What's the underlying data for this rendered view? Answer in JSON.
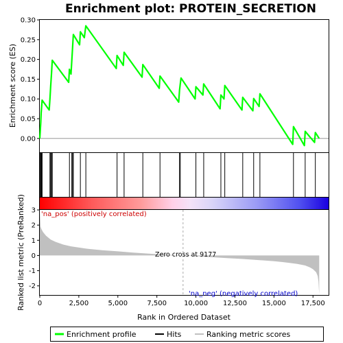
{
  "chart_data": {
    "type": "line",
    "title": "Enrichment plot: PROTEIN_SECRETION",
    "colors": {
      "enrichment_line": "#00ff00",
      "hits": "#000000",
      "metric_fill": "#c0c0c0",
      "pos_label": "#cc0000",
      "neg_label": "#0000cc",
      "zero_cross_line": "#aaaaaa"
    },
    "top_panel": {
      "ylabel": "Enrichment score (ES)",
      "ylim": [
        -0.035,
        0.3
      ],
      "yticks": [
        0.0,
        0.05,
        0.1,
        0.15,
        0.2,
        0.25,
        0.3
      ],
      "ytick_labels": [
        "0.00",
        "0.05",
        "0.10",
        "0.15",
        "0.20",
        "0.25",
        "0.30"
      ],
      "series": [
        {
          "name": "Enrichment profile",
          "x": [
            0,
            30,
            60,
            90,
            120,
            150,
            600,
            650,
            700,
            750,
            800,
            1850,
            1900,
            2000,
            2050,
            2100,
            2150,
            2550,
            2600,
            2850,
            2950,
            4900,
            4950,
            5350,
            5400,
            6550,
            6600,
            7650,
            7700,
            8900,
            8950,
            9000,
            9050,
            9950,
            10000,
            10450,
            10500,
            11550,
            11600,
            11800,
            11850,
            12950,
            13000,
            13650,
            13700,
            14050,
            14100,
            16200,
            16250,
            16950,
            17000,
            17600,
            17650,
            17900
          ],
          "y": [
            0.0,
            0.02,
            0.04,
            0.065,
            0.08,
            0.097,
            0.072,
            0.1,
            0.133,
            0.165,
            0.198,
            0.142,
            0.175,
            0.163,
            0.198,
            0.23,
            0.263,
            0.237,
            0.27,
            0.255,
            0.285,
            0.177,
            0.21,
            0.185,
            0.218,
            0.155,
            0.187,
            0.127,
            0.158,
            0.092,
            0.122,
            0.138,
            0.153,
            0.1,
            0.131,
            0.11,
            0.138,
            0.075,
            0.11,
            0.1,
            0.134,
            0.072,
            0.104,
            0.07,
            0.101,
            0.081,
            0.113,
            -0.015,
            0.03,
            -0.018,
            0.018,
            -0.01,
            0.015,
            0.0
          ]
        }
      ]
    },
    "hits_panel": {
      "hit_positions": [
        30,
        60,
        90,
        120,
        150,
        650,
        700,
        750,
        800,
        1900,
        2050,
        2100,
        2150,
        2600,
        2950,
        4950,
        5400,
        6600,
        7700,
        8950,
        9000,
        10000,
        10500,
        11600,
        11850,
        13000,
        13700,
        14100,
        16250,
        17000,
        17650
      ]
    },
    "bottom_panel": {
      "ylabel": "Ranked list metric (PreRanked)",
      "xlabel": "Rank in Ordered Dataset",
      "xlim": [
        0,
        18500
      ],
      "ylim": [
        -2.6,
        3.0
      ],
      "xticks": [
        0,
        2500,
        5000,
        7500,
        10000,
        12500,
        15000,
        17500
      ],
      "xtick_labels": [
        "0",
        "2,500",
        "5,000",
        "7,500",
        "10,000",
        "12,500",
        "15,000",
        "17,500"
      ],
      "yticks": [
        -2,
        -1,
        0,
        1,
        2,
        3
      ],
      "ytick_labels": [
        "-2",
        "-1",
        "0",
        "1",
        "2",
        "3"
      ],
      "metric_curve": {
        "x": [
          0,
          50,
          100,
          200,
          400,
          700,
          1000,
          1500,
          2000,
          3000,
          4000,
          5000,
          6000,
          7000,
          8000,
          9177,
          10000,
          11000,
          12000,
          13000,
          14000,
          15000,
          15500,
          16000,
          16500,
          17000,
          17300,
          17500,
          17700,
          17800,
          17850,
          17900
        ],
        "y": [
          3.0,
          1.9,
          1.75,
          1.55,
          1.3,
          1.05,
          0.9,
          0.72,
          0.6,
          0.45,
          0.35,
          0.27,
          0.19,
          0.12,
          0.06,
          0.0,
          -0.05,
          -0.11,
          -0.17,
          -0.23,
          -0.3,
          -0.38,
          -0.43,
          -0.49,
          -0.56,
          -0.66,
          -0.78,
          -0.9,
          -1.1,
          -1.35,
          -1.7,
          -2.55
        ]
      },
      "zero_cross_rank": 9177,
      "zero_cross_label": "Zero cross at 9177",
      "pos_label": "'na_pos' (positively correlated)",
      "neg_label": "'na_neg' (negatively correlated)"
    },
    "legend": {
      "placement": "bottom",
      "entries": [
        "Enrichment profile",
        "Hits",
        "Ranking metric scores"
      ]
    }
  }
}
